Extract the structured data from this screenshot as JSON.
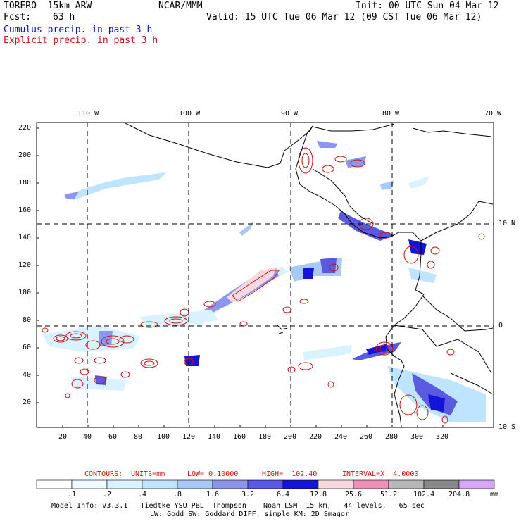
{
  "header": {
    "model": "TORERO  15km ARW",
    "center": "NCAR/MMM",
    "init": "Init: 00 UTC Sun 04 Mar 12",
    "fcst_label": "Fcst:",
    "fcst_value": "63 h",
    "valid": "Valid: 15 UTC Tue 06 Mar 12 (09 CST Tue 06 Mar 12)",
    "legend_cumulus": "Cumulus precip. in past 3 h",
    "legend_explicit": "Explicit precip. in past 3 h"
  },
  "axes": {
    "lon_labels": [
      "110 W",
      "100 W",
      "90 W",
      "80 W",
      "70 W"
    ],
    "lat_labels": [
      "10 N",
      "0",
      "10 S"
    ],
    "y_ticks": [
      "220",
      "200",
      "180",
      "160",
      "140",
      "120",
      "100",
      "80",
      "60",
      "40",
      "20"
    ],
    "x_ticks": [
      "20",
      "40",
      "60",
      "80",
      "100",
      "120",
      "140",
      "160",
      "180",
      "200",
      "220",
      "240",
      "260",
      "280",
      "300",
      "320"
    ]
  },
  "contours": {
    "label": "CONTOURS:",
    "units": "UNITS=mm",
    "low": "LOW= 0.10000",
    "high": "HIGH=  102.40",
    "interval": "INTERVAL=X  4.0000"
  },
  "colorbar": {
    "colors": [
      "#ffffff",
      "#eefaff",
      "#d8f2ff",
      "#bfe4ff",
      "#a8c8f8",
      "#8c96f0",
      "#5a5ae0",
      "#1414d8",
      "#f8d8e0",
      "#f090b8",
      "#b8b8b8",
      "#888888",
      "#d8a8f8"
    ],
    "labels": [
      ".1",
      ".2",
      ".4",
      ".8",
      "1.6",
      "3.2",
      "6.4",
      "12.8",
      "25.6",
      "51.2",
      "102.4",
      "204.8"
    ],
    "unit": "mm"
  },
  "footer": {
    "line1": "Model Info: V3.3.1   Tiedtke YSU PBL  Thompson    Noah LSM  15 km,   44 levels,   65 sec",
    "line2": "LW: Godd SW: Goddard DIFF: simple KM: 2D Smagor"
  }
}
